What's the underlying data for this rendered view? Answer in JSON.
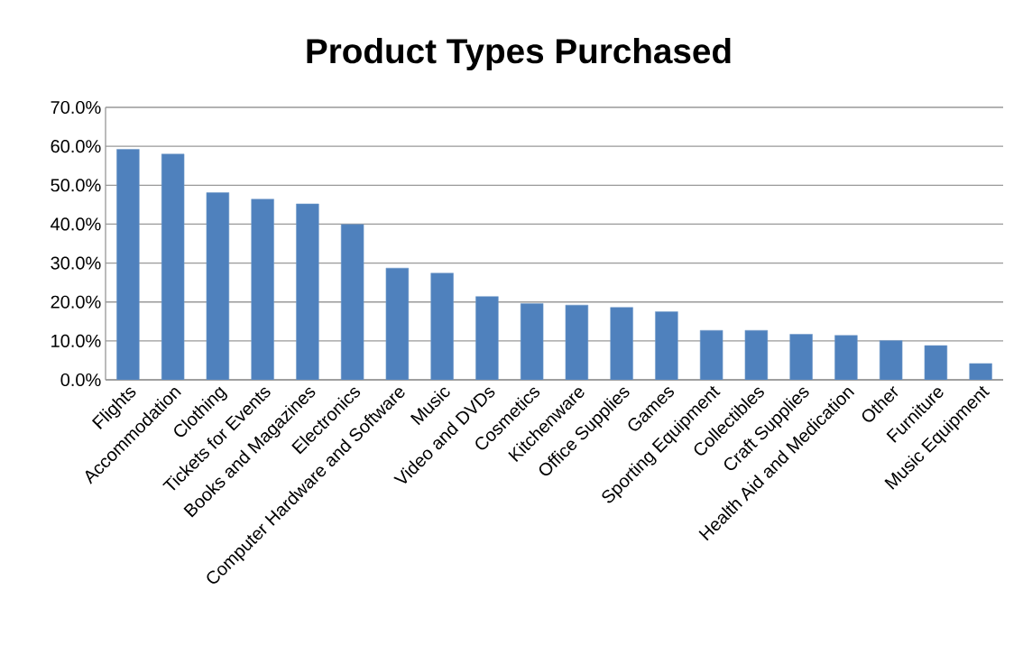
{
  "chart_data": {
    "type": "bar",
    "title": "Product Types Purchased",
    "categories": [
      "Flights",
      "Accommodation",
      "Clothing",
      "Tickets for Events",
      "Books and Magazines",
      "Electronics",
      "Computer Hardware and Software",
      "Music",
      "Video and DVDs",
      "Cosmetics",
      "Kitchenware",
      "Office Supplies",
      "Games",
      "Sporting Equipment",
      "Collectibles",
      "Craft Supplies",
      "Health Aid and Medication",
      "Other",
      "Furniture",
      "Music Equipment"
    ],
    "values": [
      59.2,
      58.0,
      48.1,
      46.4,
      45.2,
      39.9,
      28.7,
      27.4,
      21.4,
      19.6,
      19.2,
      18.6,
      17.5,
      12.7,
      12.7,
      11.7,
      11.4,
      10.1,
      8.8,
      4.2
    ],
    "color": "#4f81bd",
    "ylim": [
      0,
      70
    ],
    "yticks": [
      {
        "value": 0,
        "label": "0.0%"
      },
      {
        "value": 10,
        "label": "10.0%"
      },
      {
        "value": 20,
        "label": "20.0%"
      },
      {
        "value": 30,
        "label": "30.0%"
      },
      {
        "value": 40,
        "label": "40.0%"
      },
      {
        "value": 50,
        "label": "50.0%"
      },
      {
        "value": 60,
        "label": "60.0%"
      },
      {
        "value": 70,
        "label": "70.0%"
      }
    ],
    "grid": "y"
  }
}
